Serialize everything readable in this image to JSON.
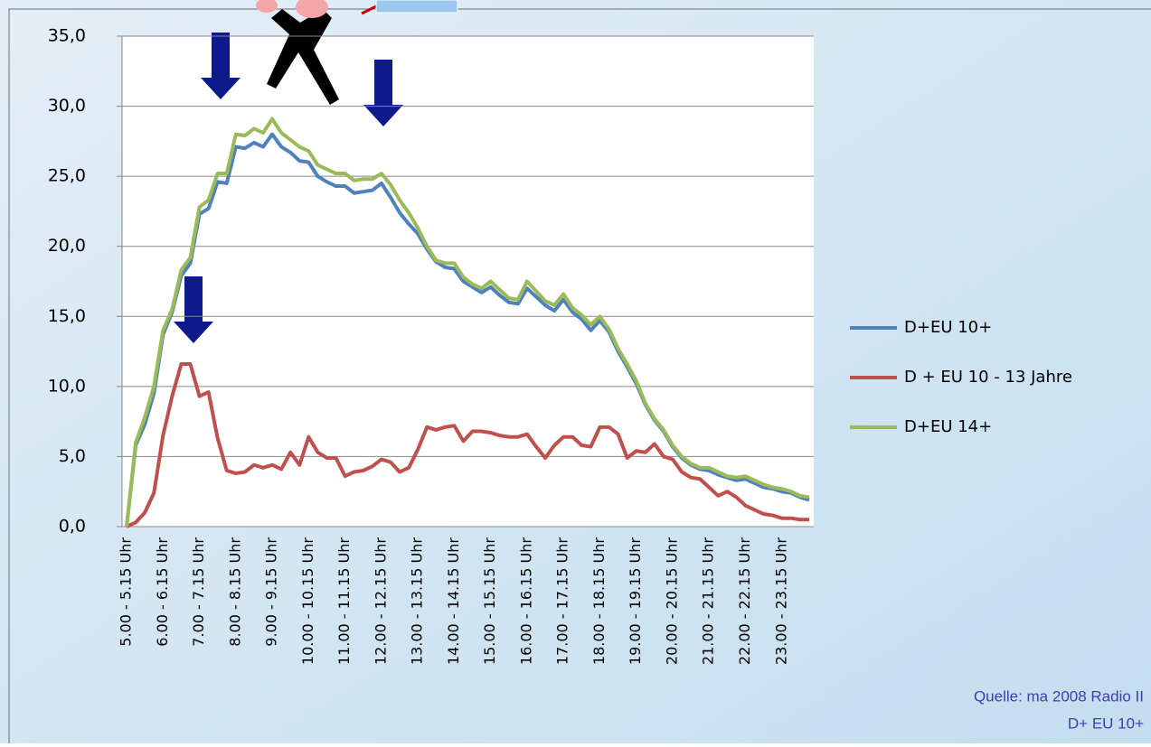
{
  "chart_data": {
    "type": "line",
    "categories": [
      "5.00 - 5.15 Uhr",
      null,
      null,
      null,
      "6.00 - 6.15 Uhr",
      null,
      null,
      null,
      "7.00 - 7.15 Uhr",
      null,
      null,
      null,
      "8.00 - 8.15 Uhr",
      null,
      null,
      null,
      "9.00 - 9.15 Uhr",
      null,
      null,
      null,
      "10.00 - 10.15 Uhr",
      null,
      null,
      null,
      "11.00 - 11.15 Uhr",
      null,
      null,
      null,
      "12.00 - 12.15 Uhr",
      null,
      null,
      null,
      "13.00 - 13.15 Uhr",
      null,
      null,
      null,
      "14.00 - 14.15 Uhr",
      null,
      null,
      null,
      "15.00 - 15.15 Uhr",
      null,
      null,
      null,
      "16.00 - 16.15 Uhr",
      null,
      null,
      null,
      "17.00 - 17.15 Uhr",
      null,
      null,
      null,
      "18.00 - 18.15 Uhr",
      null,
      null,
      null,
      "19.00 - 19.15 Uhr",
      null,
      null,
      null,
      "20.00 - 20.15 Uhr",
      null,
      null,
      null,
      "21.00 - 21.15 Uhr",
      null,
      null,
      null,
      "22.00 - 22.15 Uhr",
      null,
      null,
      null,
      "23.00 - 23.15 Uhr",
      null,
      null,
      null
    ],
    "series": [
      {
        "name": "D+EU 10+",
        "color": "#4f81bd",
        "values": [
          0,
          5.8,
          7.3,
          9.5,
          13.7,
          15.3,
          17.9,
          18.8,
          22.3,
          22.7,
          24.6,
          24.5,
          27.1,
          27,
          27.4,
          27.1,
          28,
          27.1,
          26.7,
          26.1,
          26,
          25,
          24.6,
          24.3,
          24.3,
          23.8,
          23.9,
          24,
          24.5,
          23.5,
          22.4,
          21.6,
          20.9,
          19.8,
          18.9,
          18.5,
          18.4,
          17.5,
          17.1,
          16.7,
          17.1,
          16.5,
          16,
          15.9,
          17,
          16.4,
          15.8,
          15.4,
          16.2,
          15.3,
          14.8,
          14,
          14.7,
          13.9,
          12.5,
          11.4,
          10.2,
          8.7,
          7.6,
          6.8,
          5.7,
          4.9,
          4.4,
          4.1,
          4,
          3.7,
          3.5,
          3.3,
          3.4,
          3.1,
          2.8,
          2.7,
          2.5,
          2.4,
          2.1,
          1.9
        ]
      },
      {
        "name": "D + EU 10 - 13 Jahre",
        "color": "#c0504d",
        "values": [
          0,
          0.3,
          1,
          2.4,
          6.5,
          9.3,
          11.6,
          11.6,
          9.3,
          9.6,
          6.3,
          4,
          3.8,
          3.9,
          4.4,
          4.2,
          4.4,
          4.1,
          5.3,
          4.4,
          6.4,
          5.3,
          4.9,
          4.9,
          3.6,
          3.9,
          4.0,
          4.3,
          4.8,
          4.6,
          3.9,
          4.2,
          5.5,
          7.1,
          6.9,
          7.1,
          7.2,
          6.1,
          6.8,
          6.8,
          6.7,
          6.5,
          6.4,
          6.4,
          6.6,
          5.7,
          4.9,
          5.8,
          6.4,
          6.4,
          5.8,
          5.7,
          7.1,
          7.1,
          6.6,
          4.9,
          5.4,
          5.3,
          5.9,
          5,
          4.8,
          3.9,
          3.5,
          3.4,
          2.8,
          2.2,
          2.5,
          2.1,
          1.5,
          1.2,
          0.9,
          0.8,
          0.6,
          0.6,
          0.5,
          0.5
        ]
      },
      {
        "name": "D+EU 14+",
        "color": "#9bbb59",
        "values": [
          0,
          6,
          7.8,
          10,
          14,
          15.5,
          18.3,
          19.2,
          22.8,
          23.3,
          25.2,
          25.2,
          28,
          27.9,
          28.4,
          28.1,
          29.1,
          28.1,
          27.6,
          27.1,
          26.8,
          25.8,
          25.5,
          25.2,
          25.2,
          24.7,
          24.8,
          24.8,
          25.2,
          24.4,
          23.3,
          22.4,
          21.3,
          20,
          19,
          18.8,
          18.8,
          17.8,
          17.3,
          17,
          17.5,
          16.9,
          16.3,
          16.2,
          17.5,
          16.8,
          16.1,
          15.8,
          16.6,
          15.6,
          15.1,
          14.4,
          15,
          14.1,
          12.7,
          11.6,
          10.4,
          8.8,
          7.7,
          6.9,
          5.8,
          5,
          4.5,
          4.2,
          4.2,
          3.9,
          3.6,
          3.5,
          3.6,
          3.3,
          3,
          2.8,
          2.7,
          2.5,
          2.2,
          2.1
        ]
      }
    ],
    "ylim": [
      0,
      35
    ],
    "yticks": [
      {
        "value": 0,
        "label": "0,0"
      },
      {
        "value": 5,
        "label": "5,0"
      },
      {
        "value": 10,
        "label": "10,0"
      },
      {
        "value": 15,
        "label": "15,0"
      },
      {
        "value": 20,
        "label": "20,0"
      },
      {
        "value": 25,
        "label": "25,0"
      },
      {
        "value": 30,
        "label": "30,0"
      },
      {
        "value": 35,
        "label": "35,0"
      }
    ],
    "grid": true,
    "legend": "right",
    "annotations": [
      "Quelle: ma 2008 Radio II",
      "D+ EU 10+"
    ]
  }
}
